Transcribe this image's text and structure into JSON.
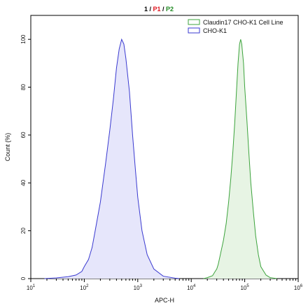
{
  "header": {
    "parts": [
      {
        "text": "1",
        "color": "#000000"
      },
      {
        "text": " / ",
        "color": "#000000"
      },
      {
        "text": "P1",
        "color": "#e0141e"
      },
      {
        "text": " / ",
        "color": "#000000"
      },
      {
        "text": "P2",
        "color": "#1f8a22"
      }
    ]
  },
  "chart_data": {
    "type": "area",
    "title": "",
    "xlabel": "APC-H",
    "ylabel": "Count (%)",
    "xscale": "log",
    "xlim": [
      10,
      1000000
    ],
    "ylim": [
      0,
      110
    ],
    "grid": false,
    "legend_position": "top-right",
    "x_ticks": [
      {
        "base": "10",
        "exp": "1"
      },
      {
        "base": "10",
        "exp": "2"
      },
      {
        "base": "10",
        "exp": "3"
      },
      {
        "base": "10",
        "exp": "4"
      },
      {
        "base": "10",
        "exp": "5"
      },
      {
        "base": "10",
        "exp": "6"
      }
    ],
    "y_ticks": [
      "0",
      "20",
      "40",
      "60",
      "80",
      "100"
    ],
    "y_tick_values": [
      0,
      20,
      40,
      60,
      80,
      100
    ],
    "series": [
      {
        "name": "Claudin17 CHO-K1 Cell Line",
        "stroke": "#3ca33c",
        "fill": "#e7f4e4",
        "points": [
          [
            17000,
            0
          ],
          [
            20000,
            0.4
          ],
          [
            25000,
            1.2
          ],
          [
            28000,
            3
          ],
          [
            30000,
            4
          ],
          [
            32000,
            6
          ],
          [
            35000,
            10
          ],
          [
            40000,
            16
          ],
          [
            45000,
            23
          ],
          [
            50000,
            32
          ],
          [
            55000,
            42
          ],
          [
            60000,
            53
          ],
          [
            65000,
            65
          ],
          [
            70000,
            78
          ],
          [
            75000,
            90
          ],
          [
            80000,
            98
          ],
          [
            84000,
            100
          ],
          [
            88000,
            98
          ],
          [
            95000,
            90
          ],
          [
            100000,
            80
          ],
          [
            110000,
            66
          ],
          [
            120000,
            52
          ],
          [
            130000,
            40
          ],
          [
            145000,
            28
          ],
          [
            160000,
            18
          ],
          [
            180000,
            10
          ],
          [
            200000,
            5
          ],
          [
            250000,
            1.5
          ],
          [
            300000,
            0.4
          ],
          [
            400000,
            0
          ]
        ]
      },
      {
        "name": "CHO-K1",
        "stroke": "#3a3ad0",
        "fill": "#e6e6fb",
        "points": [
          [
            18,
            0
          ],
          [
            30,
            0.3
          ],
          [
            50,
            0.8
          ],
          [
            70,
            1.5
          ],
          [
            90,
            3
          ],
          [
            100,
            5
          ],
          [
            120,
            8
          ],
          [
            140,
            13
          ],
          [
            160,
            20
          ],
          [
            200,
            32
          ],
          [
            250,
            48
          ],
          [
            300,
            62
          ],
          [
            350,
            75
          ],
          [
            400,
            88
          ],
          [
            450,
            96
          ],
          [
            500,
            100
          ],
          [
            550,
            98
          ],
          [
            600,
            92
          ],
          [
            700,
            78
          ],
          [
            800,
            60
          ],
          [
            900,
            46
          ],
          [
            1000,
            34
          ],
          [
            1200,
            20
          ],
          [
            1500,
            10
          ],
          [
            2000,
            4
          ],
          [
            3000,
            1
          ],
          [
            5000,
            0.2
          ],
          [
            6000,
            0
          ]
        ]
      }
    ]
  }
}
